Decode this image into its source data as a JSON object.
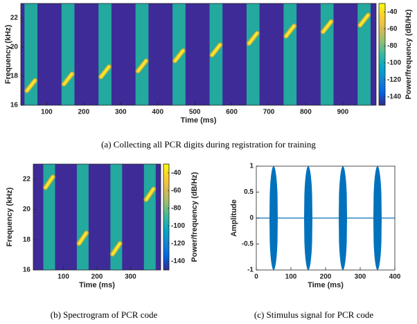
{
  "chart_data": [
    {
      "type": "spectrogram",
      "xlabel": "Time (ms)",
      "ylabel": "Frequency (kHz)",
      "colorbar_label": "Power/frequency (dB/Hz)",
      "caption": "(a) Collecting all PCR digits during registration for training",
      "xlim": [
        30,
        990
      ],
      "xticks": [
        100,
        200,
        300,
        400,
        500,
        600,
        700,
        800,
        900
      ],
      "ylim": [
        16,
        23
      ],
      "yticks": [
        16,
        18,
        20,
        22
      ],
      "clim": [
        -150,
        -30
      ],
      "cticks": [
        -40,
        -60,
        -80,
        -100,
        -120,
        -140
      ],
      "colormap": [
        "#352a87",
        "#0363e1",
        "#1485d4",
        "#06a7c6",
        "#38b99e",
        "#92bf73",
        "#d9ba56",
        "#fcce2e",
        "#f9fb0e"
      ],
      "background_color": "#3e2b98",
      "band_color": "#23a99e",
      "tone_color": "#f6e62a",
      "tones": [
        {
          "start": 40,
          "end": 75,
          "freq": 17.35
        },
        {
          "start": 140,
          "end": 175,
          "freq": 17.8
        },
        {
          "start": 240,
          "end": 275,
          "freq": 18.3
        },
        {
          "start": 340,
          "end": 375,
          "freq": 18.7
        },
        {
          "start": 440,
          "end": 475,
          "freq": 19.4
        },
        {
          "start": 540,
          "end": 575,
          "freq": 19.8
        },
        {
          "start": 640,
          "end": 675,
          "freq": 20.6
        },
        {
          "start": 740,
          "end": 775,
          "freq": 21.1
        },
        {
          "start": 840,
          "end": 875,
          "freq": 21.4
        },
        {
          "start": 940,
          "end": 975,
          "freq": 21.85
        }
      ]
    },
    {
      "type": "spectrogram",
      "xlabel": "Time (ms)",
      "ylabel": "Frequency (kHz)",
      "colorbar_label": "Power/frequency (dB/Hz)",
      "caption": "(b) Spectrogram of PCR code",
      "xlim": [
        10,
        390
      ],
      "xticks": [
        100,
        200,
        300
      ],
      "ylim": [
        16,
        23
      ],
      "yticks": [
        16,
        18,
        20,
        22
      ],
      "clim": [
        -150,
        -30
      ],
      "cticks": [
        -40,
        -60,
        -80,
        -100,
        -120,
        -140
      ],
      "colormap": [
        "#352a87",
        "#0363e1",
        "#1485d4",
        "#06a7c6",
        "#38b99e",
        "#92bf73",
        "#d9ba56",
        "#fcce2e",
        "#f9fb0e"
      ],
      "background_color": "#3e2b98",
      "band_color": "#23a99e",
      "tone_color": "#f6e62a",
      "tones": [
        {
          "start": 40,
          "end": 75,
          "freq": 21.8
        },
        {
          "start": 140,
          "end": 175,
          "freq": 18.1
        },
        {
          "start": 240,
          "end": 275,
          "freq": 17.4
        },
        {
          "start": 340,
          "end": 375,
          "freq": 21.0
        }
      ]
    },
    {
      "type": "signal",
      "xlabel": "Time (ms)",
      "ylabel": "Amplitude",
      "caption": "(c) Stimulus signal for PCR code",
      "xlim": [
        0,
        400
      ],
      "xticks": [
        0,
        100,
        200,
        300,
        400
      ],
      "ylim": [
        -1,
        1
      ],
      "yticks": [
        -1,
        -0.5,
        0,
        0.5,
        1
      ],
      "color": "#0072bd",
      "bursts": [
        {
          "start": 38,
          "end": 62,
          "amplitude": 1
        },
        {
          "start": 138,
          "end": 162,
          "amplitude": 1
        },
        {
          "start": 238,
          "end": 262,
          "amplitude": 1
        },
        {
          "start": 338,
          "end": 362,
          "amplitude": 1
        }
      ]
    }
  ]
}
